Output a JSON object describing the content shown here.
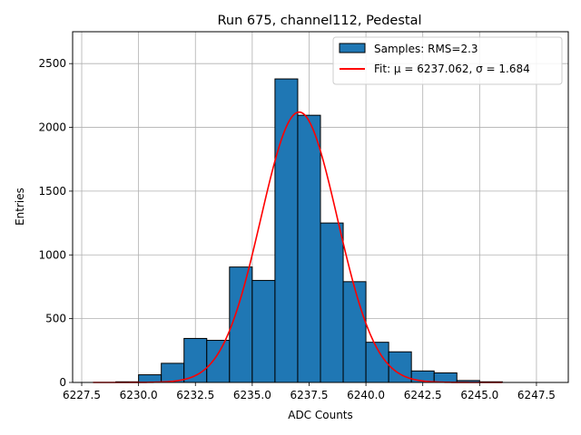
{
  "chart_data": {
    "type": "bar",
    "title": "Run 675, channel112, Pedestal",
    "xlabel": "ADC Counts",
    "ylabel": "Entries",
    "xlim": [
      6227.1,
      6248.9
    ],
    "ylim": [
      0,
      2750
    ],
    "grid": true,
    "legend_position": "top-right",
    "x_ticks": [
      6227.5,
      6230.0,
      6232.5,
      6235.0,
      6237.5,
      6240.0,
      6242.5,
      6245.0,
      6247.5
    ],
    "x_tick_labels": [
      "6227.5",
      "6230.0",
      "6232.5",
      "6235.0",
      "6237.5",
      "6240.0",
      "6242.5",
      "6245.0",
      "6247.5"
    ],
    "y_ticks": [
      0,
      500,
      1000,
      1500,
      2000,
      2500
    ],
    "y_tick_labels": [
      "0",
      "500",
      "1000",
      "1500",
      "2000",
      "2500"
    ],
    "bin_edges": [
      6228,
      6229,
      6230,
      6231,
      6232,
      6233,
      6234,
      6235,
      6236,
      6237,
      6238,
      6239,
      6240,
      6241,
      6242,
      6243,
      6244,
      6245,
      6246
    ],
    "series": [
      {
        "name": "Samples: RMS=2.3",
        "kind": "histogram",
        "color": "#1f77b4",
        "values": [
          0,
          5,
          60,
          150,
          345,
          330,
          905,
          800,
          2380,
          2095,
          1250,
          790,
          315,
          240,
          90,
          75,
          15,
          5
        ]
      },
      {
        "name": "Fit: μ = 6237.062, σ = 1.684",
        "kind": "gaussian",
        "color": "#ff0000",
        "mu": 6237.062,
        "sigma": 1.684,
        "amplitude": 2120,
        "x_range": [
          6228,
          6246
        ]
      }
    ]
  }
}
